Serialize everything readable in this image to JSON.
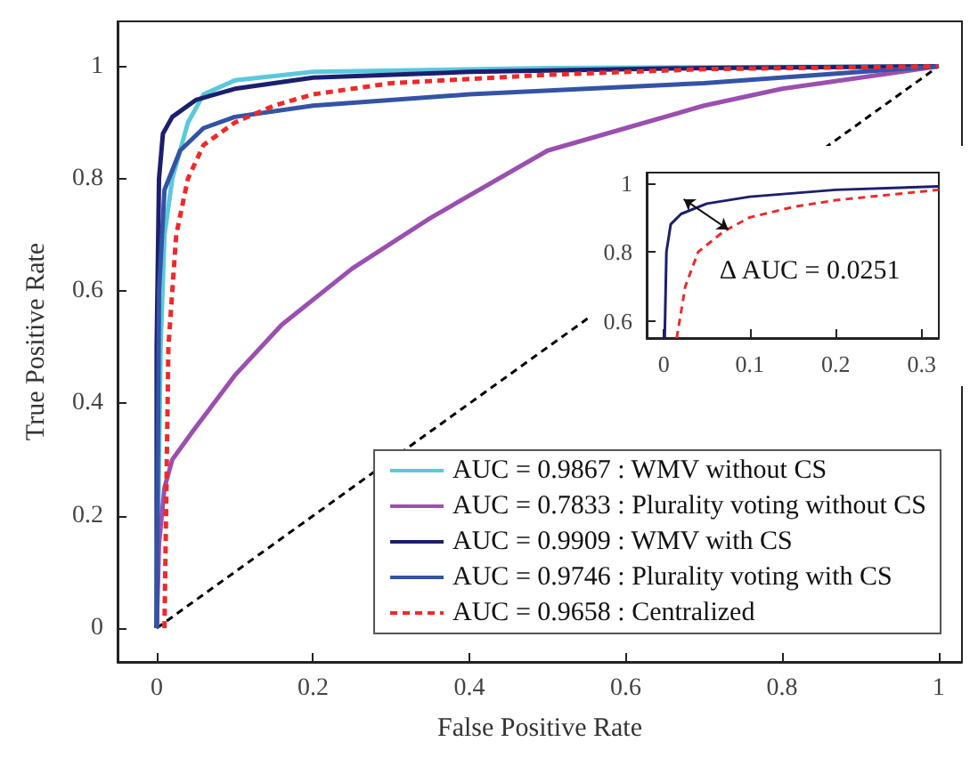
{
  "chart_data": [
    {
      "type": "line",
      "xlabel": "False Positive Rate",
      "ylabel": "True Positive Rate",
      "xlim": [
        -0.05,
        1.03
      ],
      "ylim": [
        -0.06,
        1.08
      ],
      "xticks": [
        0,
        0.2,
        0.4,
        0.6,
        0.8,
        1
      ],
      "yticks": [
        0,
        0.2,
        0.4,
        0.6,
        0.8,
        1
      ],
      "grid": false,
      "marker": "none",
      "legend": "bottom right",
      "series": [
        {
          "name": "AUC = 0.9867 : WMV without CS",
          "color": "#5bc8dc",
          "line_style": "solid",
          "x": [
            0,
            0.005,
            0.01,
            0.02,
            0.04,
            0.06,
            0.1,
            0.2,
            0.5,
            1
          ],
          "values": [
            0,
            0.5,
            0.7,
            0.8,
            0.9,
            0.95,
            0.975,
            0.99,
            0.997,
            1
          ]
        },
        {
          "name": "AUC = 0.7833 : Plurality voting without CS",
          "color": "#9b4fb0",
          "line_style": "solid",
          "x": [
            0,
            0.003,
            0.01,
            0.02,
            0.046,
            0.1,
            0.16,
            0.25,
            0.35,
            0.5,
            0.6,
            0.7,
            0.8,
            0.9,
            1
          ],
          "values": [
            0,
            0.15,
            0.25,
            0.3,
            0.35,
            0.45,
            0.54,
            0.64,
            0.73,
            0.85,
            0.89,
            0.93,
            0.96,
            0.98,
            1
          ]
        },
        {
          "name": "AUC = 0.9909 : WMV with CS",
          "color": "#1c1f6e",
          "line_style": "solid",
          "x": [
            0,
            0,
            0.003,
            0.008,
            0.02,
            0.05,
            0.1,
            0.2,
            0.4,
            0.7,
            1
          ],
          "values": [
            0,
            0.5,
            0.8,
            0.88,
            0.91,
            0.94,
            0.96,
            0.98,
            0.99,
            0.997,
            1
          ]
        },
        {
          "name": "AUC = 0.9746 : Plurality voting with CS",
          "color": "#3353a6",
          "line_style": "solid",
          "x": [
            0,
            0.003,
            0.01,
            0.03,
            0.06,
            0.1,
            0.2,
            0.4,
            0.7,
            1
          ],
          "values": [
            0,
            0.6,
            0.78,
            0.85,
            0.89,
            0.91,
            0.93,
            0.95,
            0.97,
            1
          ]
        },
        {
          "name": "AUC = 0.9658 : Centralized",
          "color": "#ee2a2a",
          "line_style": "dashed",
          "x": [
            0.01,
            0.015,
            0.025,
            0.04,
            0.06,
            0.1,
            0.15,
            0.2,
            0.3,
            0.5,
            0.7,
            1
          ],
          "values": [
            0,
            0.5,
            0.7,
            0.8,
            0.86,
            0.9,
            0.93,
            0.95,
            0.97,
            0.985,
            0.995,
            1
          ]
        },
        {
          "color": "#000000",
          "line_style": "dashed",
          "x": [
            0,
            1
          ],
          "values": [
            0,
            1
          ]
        }
      ]
    },
    {
      "type": "line",
      "xlim": [
        -0.02,
        0.32
      ],
      "ylim": [
        0.55,
        1.03
      ],
      "xticks": [
        0,
        0.1,
        0.2,
        0.3
      ],
      "yticks": [
        0.6,
        0.8,
        1
      ],
      "grid": false,
      "marker": "none",
      "annotations": [
        {
          "text": "Δ AUC = 0.0251",
          "x": 0.075,
          "y": 0.865
        }
      ],
      "series": [
        {
          "color": "#1c1f6e",
          "line_style": "solid",
          "x": [
            0.001,
            0.003,
            0.008,
            0.02,
            0.05,
            0.1,
            0.2,
            0.32
          ],
          "values": [
            0.55,
            0.8,
            0.88,
            0.91,
            0.94,
            0.96,
            0.98,
            0.99
          ]
        },
        {
          "color": "#ee2a2a",
          "line_style": "dashed",
          "x": [
            0.015,
            0.025,
            0.04,
            0.07,
            0.1,
            0.15,
            0.2,
            0.3,
            0.32
          ],
          "values": [
            0.55,
            0.7,
            0.8,
            0.86,
            0.9,
            0.93,
            0.95,
            0.975,
            0.98
          ]
        }
      ]
    }
  ]
}
